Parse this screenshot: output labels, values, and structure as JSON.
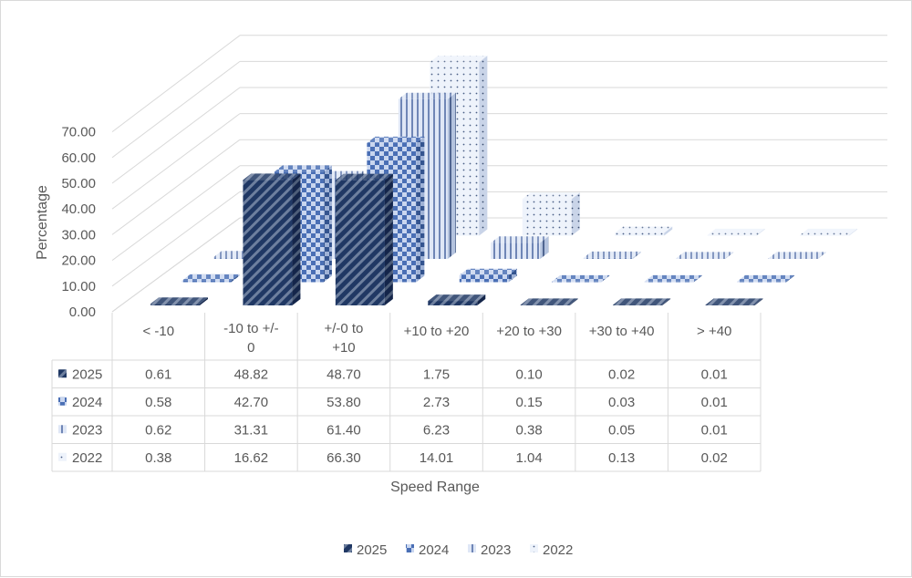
{
  "chart_data": {
    "type": "bar",
    "variant": "3d-column with data table",
    "title": "",
    "xlabel": "Speed Range",
    "ylabel": "Percentage",
    "ylim": [
      0,
      70
    ],
    "ytick_labels": [
      "0.00",
      "10.00",
      "20.00",
      "30.00",
      "40.00",
      "50.00",
      "60.00",
      "70.00"
    ],
    "categories": [
      "< -10",
      "-10 to +/- 0",
      "+/-0 to +10",
      "+10 to +20",
      "+20 to +30",
      "+30 to +40",
      "> +40"
    ],
    "series": [
      {
        "name": "2025",
        "values": [
          0.61,
          48.82,
          48.7,
          1.75,
          0.1,
          0.02,
          0.01
        ],
        "labels": [
          "0.61",
          "48.82",
          "48.70",
          "1.75",
          "0.10",
          "0.02",
          "0.01"
        ],
        "color": "#203864",
        "pattern": "diagonal stripes"
      },
      {
        "name": "2024",
        "values": [
          0.58,
          42.7,
          53.8,
          2.73,
          0.15,
          0.03,
          0.01
        ],
        "labels": [
          "0.58",
          "42.70",
          "53.80",
          "2.73",
          "0.15",
          "0.03",
          "0.01"
        ],
        "color": "#4472c4",
        "pattern": "checkerboard"
      },
      {
        "name": "2023",
        "values": [
          0.62,
          31.31,
          61.4,
          6.23,
          0.38,
          0.05,
          0.01
        ],
        "labels": [
          "0.62",
          "31.31",
          "61.40",
          "6.23",
          "0.38",
          "0.05",
          "0.01"
        ],
        "color": "#8faadc",
        "pattern": "vertical stripes"
      },
      {
        "name": "2022",
        "values": [
          0.38,
          16.62,
          66.3,
          14.01,
          1.04,
          0.13,
          0.02
        ],
        "labels": [
          "0.38",
          "16.62",
          "66.30",
          "14.01",
          "1.04",
          "0.13",
          "0.02"
        ],
        "color": "#dae3f3",
        "pattern": "dots"
      }
    ],
    "grid": true,
    "legend_position": "bottom",
    "data_table": true
  }
}
